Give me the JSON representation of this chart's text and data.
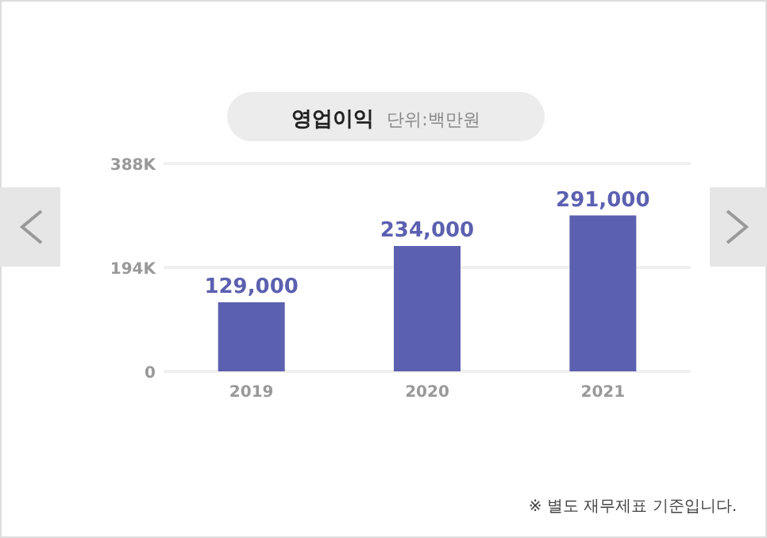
{
  "chart_data": {
    "type": "bar",
    "title": "영업이익",
    "subtitle": "단위:백만원",
    "categories": [
      "2019",
      "2020",
      "2021"
    ],
    "series": [
      {
        "color": "#5c60b0",
        "values": [
          129000,
          234000,
          291000
        ],
        "value_labels": [
          "129,000",
          "234,000",
          "291,000"
        ]
      }
    ],
    "ylim": [
      0,
      388000
    ],
    "yticks": [
      {
        "value": 0,
        "label": "0"
      },
      {
        "value": 194000,
        "label": "194K"
      },
      {
        "value": 388000,
        "label": "388K"
      }
    ],
    "grid": "y",
    "annotations": [
      "※ 별도 재무제표 기준입니다."
    ]
  }
}
